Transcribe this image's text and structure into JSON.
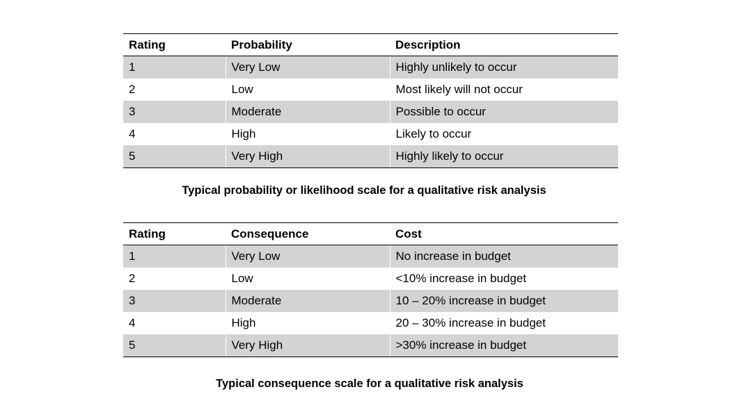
{
  "probability_table": {
    "headers": [
      "Rating",
      "Probability",
      "Description"
    ],
    "rows": [
      [
        "1",
        "Very Low",
        "Highly unlikely to occur"
      ],
      [
        "2",
        "Low",
        "Most likely will not occur"
      ],
      [
        "3",
        "Moderate",
        "Possible to occur"
      ],
      [
        "4",
        "High",
        "Likely to occur"
      ],
      [
        "5",
        "Very High",
        "Highly likely to occur"
      ]
    ],
    "caption": "Typical probability or likelihood scale for a qualitative risk analysis"
  },
  "consequence_table": {
    "headers": [
      "Rating",
      "Consequence",
      "Cost"
    ],
    "rows": [
      [
        "1",
        "Very Low",
        "No increase in budget"
      ],
      [
        "2",
        "Low",
        "<10% increase in budget"
      ],
      [
        "3",
        "Moderate",
        "10 – 20% increase in budget"
      ],
      [
        "4",
        "High",
        "20 – 30% increase in budget"
      ],
      [
        "5",
        "Very High",
        ">30% increase in budget"
      ]
    ],
    "caption": "Typical consequence scale for a qualitative risk analysis"
  },
  "colors": {
    "row_shade": "#d3d3d3",
    "rule": "#000000"
  }
}
